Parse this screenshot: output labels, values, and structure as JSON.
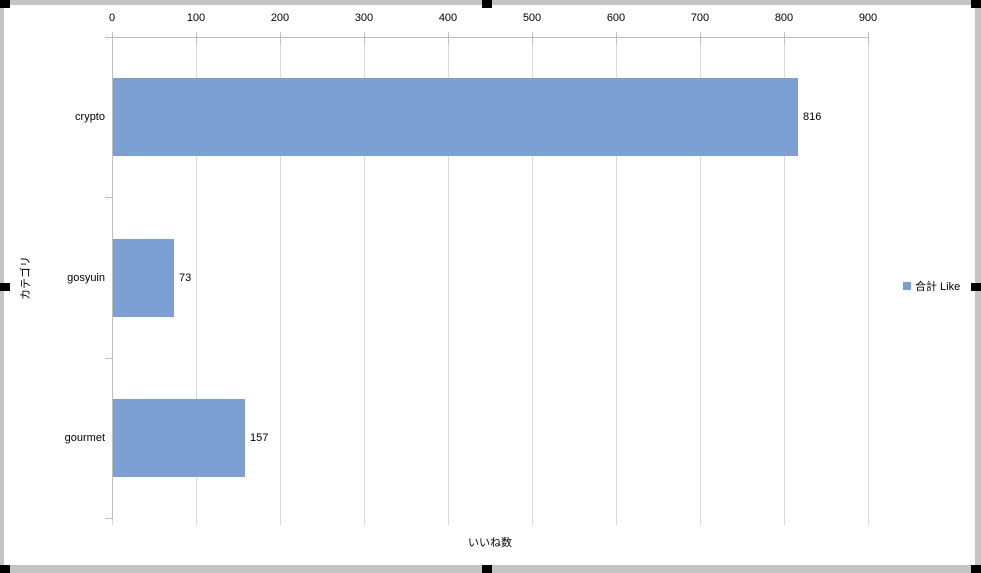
{
  "frame": {
    "border_color": "#c4c4c4",
    "handle_color": "#000000",
    "background": "#ffffff"
  },
  "chart_data": {
    "type": "bar",
    "orientation": "horizontal",
    "title": "",
    "categories": [
      "crypto",
      "gosyuin",
      "gourmet"
    ],
    "series": [
      {
        "name": "合計 Like",
        "values": [
          816,
          73,
          157
        ]
      }
    ],
    "data_labels": [
      "816",
      "73",
      "157"
    ],
    "xlabel": "いいね数",
    "ylabel": "カテゴリ",
    "xlim": [
      0,
      900
    ],
    "xticks": [
      0,
      100,
      200,
      300,
      400,
      500,
      600,
      700,
      800,
      900
    ],
    "grid": true,
    "legend": {
      "position": "right",
      "entries": [
        "合計 Like"
      ]
    },
    "colors": {
      "bar": "#7c9fd4",
      "gridline": "#d9d9d9",
      "axis": "#bfbfbf",
      "text": "#000000"
    }
  }
}
